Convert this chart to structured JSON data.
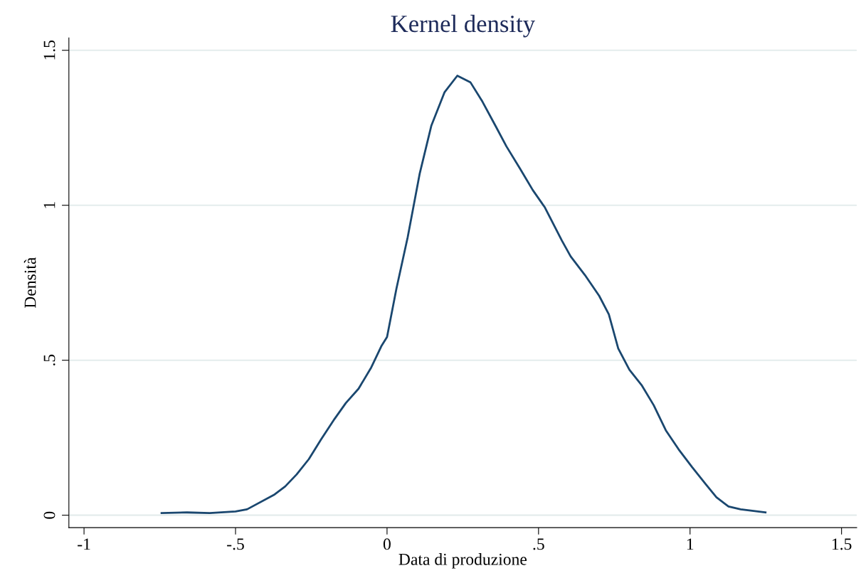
{
  "chart_data": {
    "type": "line",
    "title": "Kernel density",
    "xlabel": "Data di produzione",
    "ylabel": "Densità",
    "series": [
      {
        "color": "#1a476f",
        "x": [
          -0.744,
          -0.66,
          -0.585,
          -0.5,
          -0.462,
          -0.371,
          -0.336,
          -0.298,
          -0.258,
          -0.218,
          -0.173,
          -0.136,
          -0.094,
          -0.052,
          -0.019,
          0,
          0.031,
          0.068,
          0.108,
          0.146,
          0.19,
          0.232,
          0.275,
          0.315,
          0.357,
          0.394,
          0.439,
          0.481,
          0.521,
          0.577,
          0.606,
          0.653,
          0.7,
          0.732,
          0.763,
          0.8,
          0.84,
          0.88,
          0.92,
          0.962,
          1.007,
          1.052,
          1.087,
          1.127,
          1.167,
          1.249
        ],
        "values": [
          0.007,
          0.009,
          0.007,
          0.012,
          0.019,
          0.067,
          0.093,
          0.132,
          0.181,
          0.244,
          0.311,
          0.362,
          0.408,
          0.477,
          0.545,
          0.575,
          0.731,
          0.896,
          1.103,
          1.256,
          1.365,
          1.418,
          1.397,
          1.334,
          1.258,
          1.19,
          1.118,
          1.049,
          0.993,
          0.886,
          0.835,
          0.775,
          0.708,
          0.648,
          0.538,
          0.469,
          0.42,
          0.355,
          0.274,
          0.213,
          0.155,
          0.1,
          0.058,
          0.028,
          0.019,
          0.009
        ]
      }
    ],
    "xlim": [
      -1.05,
      1.55
    ],
    "ylim": [
      -0.04,
      1.54
    ],
    "xticks": [
      {
        "value": -1,
        "label": "-1"
      },
      {
        "value": -0.5,
        "label": "-.5"
      },
      0,
      {
        "value": 0.5,
        "label": ".5"
      },
      1,
      {
        "value": 1.5,
        "label": "1.5"
      }
    ],
    "yticks": [
      0,
      {
        "value": 0.5,
        "label": ".5"
      },
      1,
      {
        "value": 1.5,
        "label": "1.5"
      }
    ],
    "grid": "y",
    "marker": "none",
    "line_style": "solid",
    "legend": false
  }
}
